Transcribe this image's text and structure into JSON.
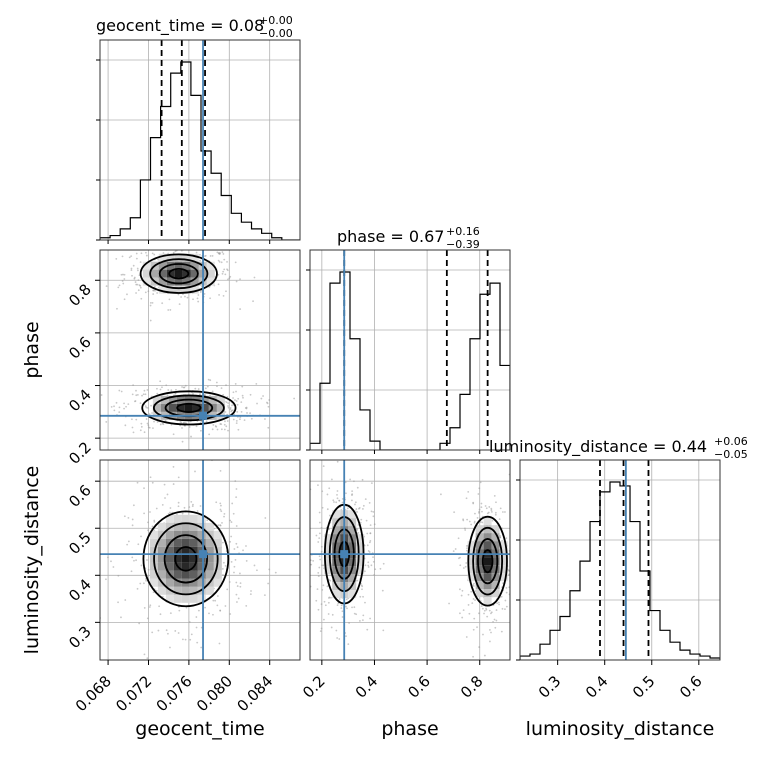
{
  "chart_data": {
    "type": "corner",
    "parameters": [
      "geocent_time",
      "phase",
      "luminosity_distance"
    ],
    "axis_labels": {
      "geocent_time": "geocent_time",
      "phase": "phase",
      "luminosity_distance": "luminosity_distance"
    },
    "truths": {
      "geocent_time": 0.0774,
      "phase": 0.285,
      "luminosity_distance": 0.445
    },
    "truth_color": "#4682b4",
    "ranges": {
      "geocent_time": [
        0.0672,
        0.087
      ],
      "phase": [
        0.155,
        0.915
      ],
      "luminosity_distance": [
        0.22,
        0.645
      ]
    },
    "ticks": {
      "geocent_time": [
        "0.068",
        "0.072",
        "0.076",
        "0.080",
        "0.084"
      ],
      "phase": [
        "0.2",
        "0.4",
        "0.6",
        "0.8"
      ],
      "luminosity_distance": [
        "0.3",
        "0.4",
        "0.5",
        "0.6"
      ]
    },
    "titles": {
      "geocent_time": {
        "label": "geocent_time = 0.08",
        "plus": "+0.00",
        "minus": "−0.00"
      },
      "phase": {
        "label": "phase = 0.67",
        "plus": "+0.16",
        "minus": "−0.39"
      },
      "luminosity_distance": {
        "label": "luminosity_distance = 0.44",
        "plus": "+0.06",
        "minus": "−0.05"
      }
    },
    "histograms": {
      "geocent_time": {
        "bin_edges": [
          0.0672,
          0.0682,
          0.0692,
          0.0702,
          0.0712,
          0.0722,
          0.0732,
          0.0742,
          0.0752,
          0.0762,
          0.0772,
          0.0782,
          0.0792,
          0.0802,
          0.0812,
          0.0822,
          0.0832,
          0.0842,
          0.0852,
          0.0862,
          0.087
        ],
        "counts": [
          1,
          2,
          5,
          10,
          27,
          46,
          60,
          75,
          80,
          65,
          40,
          30,
          20,
          12,
          8,
          5,
          3,
          1,
          0,
          0
        ]
      },
      "phase": {
        "bin_edges": [
          0.155,
          0.193,
          0.231,
          0.269,
          0.307,
          0.345,
          0.383,
          0.421,
          0.459,
          0.497,
          0.535,
          0.573,
          0.611,
          0.649,
          0.687,
          0.725,
          0.763,
          0.801,
          0.839,
          0.877,
          0.915
        ],
        "counts": [
          3,
          30,
          75,
          80,
          50,
          18,
          4,
          0,
          0,
          0,
          0,
          0,
          0,
          3,
          10,
          25,
          50,
          70,
          75,
          38
        ]
      },
      "luminosity_distance": {
        "bin_edges": [
          0.22,
          0.2412,
          0.2625,
          0.2838,
          0.305,
          0.3262,
          0.3475,
          0.3688,
          0.39,
          0.4112,
          0.4325,
          0.4538,
          0.475,
          0.4962,
          0.5175,
          0.5388,
          0.56,
          0.5812,
          0.6025,
          0.6238,
          0.645
        ],
        "counts": [
          2,
          3,
          8,
          15,
          22,
          35,
          50,
          70,
          85,
          90,
          88,
          70,
          45,
          25,
          15,
          9,
          5,
          3,
          2,
          1
        ]
      }
    },
    "quantiles": {
      "geocent_time": [
        0.0733,
        0.0753,
        0.0776
      ],
      "phase": [
        0.285,
        0.675,
        0.83
      ],
      "luminosity_distance": [
        0.39,
        0.44,
        0.493
      ]
    },
    "modes_2d": {
      "geocent_time_phase": [
        {
          "center": [
            0.075,
            0.825
          ],
          "spread": [
            0.0018,
            0.035
          ]
        },
        {
          "center": [
            0.076,
            0.315
          ],
          "spread": [
            0.0022,
            0.03
          ]
        }
      ],
      "geocent_time_luminosity_distance": [
        {
          "center": [
            0.0757,
            0.435
          ],
          "spread": [
            0.002,
            0.048
          ]
        }
      ],
      "phase_luminosity_distance": [
        {
          "center": [
            0.285,
            0.445
          ],
          "spread": [
            0.035,
            0.05
          ]
        },
        {
          "center": [
            0.83,
            0.43
          ],
          "spread": [
            0.035,
            0.045
          ]
        }
      ]
    }
  }
}
